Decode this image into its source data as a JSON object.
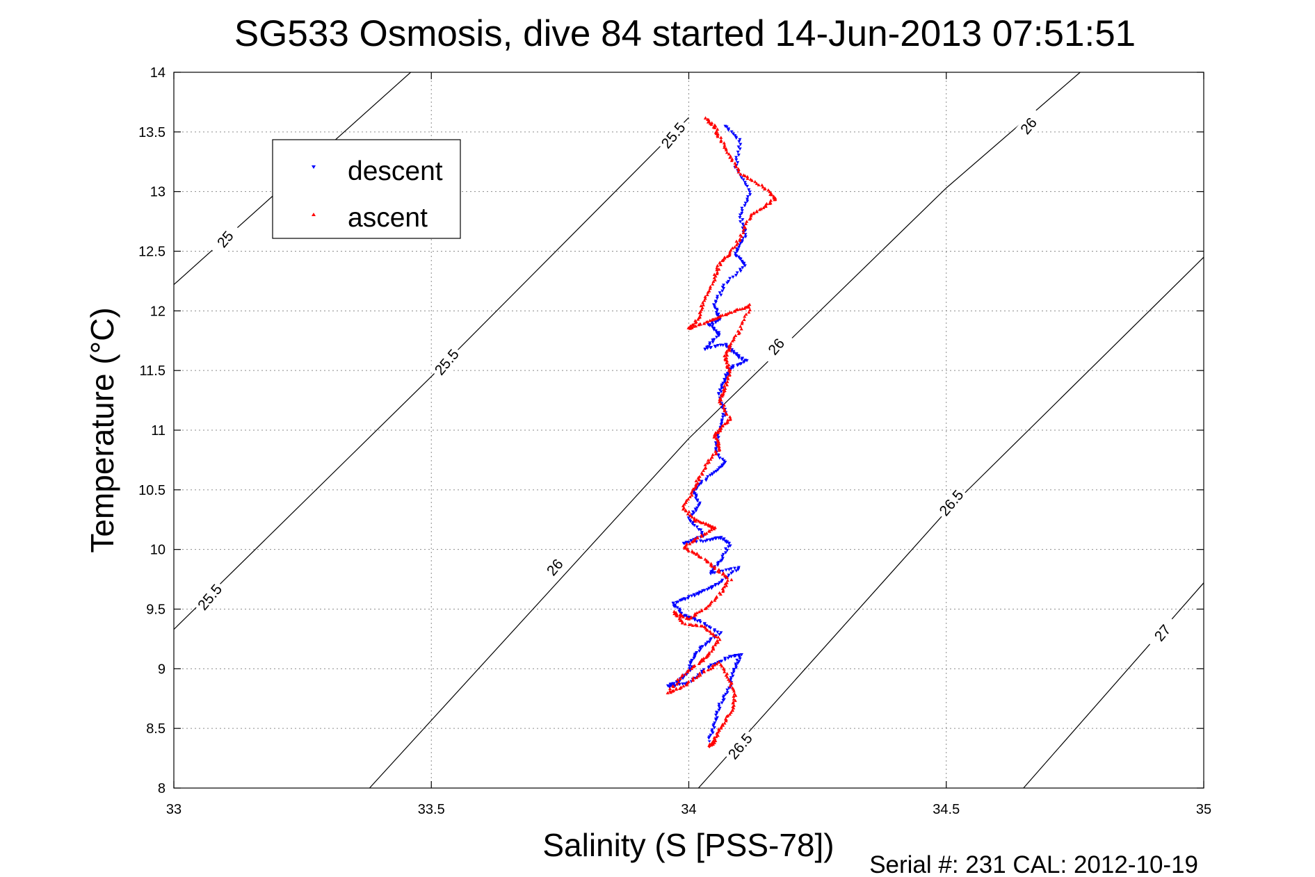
{
  "chart_data": {
    "type": "scatter",
    "title": "SG533 Osmosis, dive 84 started 14-Jun-2013 07:51:51",
    "xlabel": "Salinity (S [PSS-78])",
    "ylabel": "Temperature (°C)",
    "footer": "Serial #: 231  CAL: 2012-10-19",
    "xlim": [
      33,
      35
    ],
    "ylim": [
      8,
      14
    ],
    "xticks": [
      "33",
      "33.5",
      "34",
      "34.5",
      "35"
    ],
    "yticks": [
      "8",
      "8.5",
      "9",
      "9.5",
      "10",
      "10.5",
      "11",
      "11.5",
      "12",
      "12.5",
      "13",
      "13.5",
      "14"
    ],
    "grid": true,
    "legend": {
      "position": "top-left",
      "entries": [
        {
          "label": "descent",
          "color": "#0000ff",
          "marker": "triangle-down"
        },
        {
          "label": "ascent",
          "color": "#ff0000",
          "marker": "triangle-up"
        }
      ]
    },
    "contours": [
      {
        "label": "25",
        "points": [
          [
            33.0,
            12.22
          ],
          [
            33.46,
            14.0
          ]
        ]
      },
      {
        "label": "25.5",
        "points": [
          [
            33.0,
            9.33
          ],
          [
            33.5,
            11.45
          ],
          [
            34.0,
            13.62
          ]
        ]
      },
      {
        "label": "26",
        "points": [
          [
            33.38,
            8.0
          ],
          [
            34.0,
            10.93
          ],
          [
            34.5,
            13.03
          ],
          [
            34.76,
            14.0
          ]
        ]
      },
      {
        "label": "26.5",
        "points": [
          [
            34.0,
            7.91
          ],
          [
            34.5,
            10.32
          ],
          [
            35.0,
            12.45
          ]
        ]
      },
      {
        "label": "27",
        "points": [
          [
            34.65,
            8.0
          ],
          [
            35.0,
            9.72
          ]
        ]
      }
    ],
    "contour_labels": [
      {
        "text": "25",
        "x": 33.1,
        "y": 12.6
      },
      {
        "text": "25.5",
        "x": 33.53,
        "y": 11.57
      },
      {
        "text": "25.5",
        "x": 33.97,
        "y": 13.47
      },
      {
        "text": "25.5",
        "x": 33.07,
        "y": 9.6
      },
      {
        "text": "26",
        "x": 34.17,
        "y": 11.7
      },
      {
        "text": "26",
        "x": 34.66,
        "y": 13.55
      },
      {
        "text": "26",
        "x": 33.74,
        "y": 9.85
      },
      {
        "text": "26.5",
        "x": 34.51,
        "y": 10.39
      },
      {
        "text": "26.5",
        "x": 34.1,
        "y": 8.35
      },
      {
        "text": "27",
        "x": 34.92,
        "y": 9.3
      }
    ],
    "series": [
      {
        "name": "descent",
        "color": "#0000ff",
        "marker": "triangle-down",
        "path": [
          [
            34.07,
            13.55
          ],
          [
            34.1,
            13.42
          ],
          [
            34.09,
            13.2
          ],
          [
            34.12,
            13.0
          ],
          [
            34.1,
            12.8
          ],
          [
            34.11,
            12.62
          ],
          [
            34.09,
            12.48
          ],
          [
            34.11,
            12.38
          ],
          [
            34.07,
            12.22
          ],
          [
            34.05,
            12.05
          ],
          [
            34.06,
            11.93
          ],
          [
            34.04,
            11.88
          ],
          [
            34.06,
            11.8
          ],
          [
            34.03,
            11.68
          ],
          [
            34.07,
            11.72
          ],
          [
            34.09,
            11.64
          ],
          [
            34.11,
            11.58
          ],
          [
            34.08,
            11.52
          ],
          [
            34.07,
            11.42
          ],
          [
            34.06,
            11.3
          ],
          [
            34.07,
            11.15
          ],
          [
            34.06,
            11.0
          ],
          [
            34.05,
            10.85
          ],
          [
            34.07,
            10.72
          ],
          [
            34.04,
            10.62
          ],
          [
            34.01,
            10.5
          ],
          [
            34.02,
            10.38
          ],
          [
            34.0,
            10.25
          ],
          [
            34.03,
            10.12
          ],
          [
            33.99,
            10.05
          ],
          [
            34.04,
            10.08
          ],
          [
            34.06,
            10.1
          ],
          [
            34.08,
            10.05
          ],
          [
            34.06,
            9.9
          ],
          [
            34.04,
            9.8
          ],
          [
            34.1,
            9.85
          ],
          [
            34.06,
            9.72
          ],
          [
            34.03,
            9.65
          ],
          [
            34.0,
            9.6
          ],
          [
            33.97,
            9.55
          ],
          [
            33.99,
            9.45
          ],
          [
            34.02,
            9.4
          ],
          [
            34.06,
            9.3
          ],
          [
            34.03,
            9.2
          ],
          [
            34.01,
            9.1
          ],
          [
            34.0,
            8.98
          ],
          [
            33.98,
            8.9
          ],
          [
            33.96,
            8.85
          ],
          [
            34.0,
            8.88
          ],
          [
            34.04,
            9.02
          ],
          [
            34.08,
            9.1
          ],
          [
            34.1,
            9.12
          ],
          [
            34.09,
            9.0
          ],
          [
            34.08,
            8.85
          ],
          [
            34.06,
            8.7
          ],
          [
            34.05,
            8.55
          ],
          [
            34.04,
            8.4
          ]
        ]
      },
      {
        "name": "ascent",
        "color": "#ff0000",
        "marker": "triangle-up",
        "path": [
          [
            34.03,
            13.62
          ],
          [
            34.05,
            13.55
          ],
          [
            34.06,
            13.45
          ],
          [
            34.08,
            13.3
          ],
          [
            34.1,
            13.15
          ],
          [
            34.14,
            13.05
          ],
          [
            34.17,
            12.95
          ],
          [
            34.15,
            12.88
          ],
          [
            34.12,
            12.8
          ],
          [
            34.1,
            12.62
          ],
          [
            34.08,
            12.48
          ],
          [
            34.06,
            12.4
          ],
          [
            34.05,
            12.28
          ],
          [
            34.03,
            12.1
          ],
          [
            34.02,
            11.95
          ],
          [
            34.0,
            11.85
          ],
          [
            34.03,
            11.9
          ],
          [
            34.06,
            11.95
          ],
          [
            34.09,
            12.0
          ],
          [
            34.12,
            12.05
          ],
          [
            34.1,
            11.85
          ],
          [
            34.08,
            11.7
          ],
          [
            34.07,
            11.6
          ],
          [
            34.08,
            11.5
          ],
          [
            34.07,
            11.35
          ],
          [
            34.06,
            11.25
          ],
          [
            34.08,
            11.1
          ],
          [
            34.06,
            11.0
          ],
          [
            34.05,
            10.95
          ],
          [
            34.06,
            10.85
          ],
          [
            34.04,
            10.75
          ],
          [
            34.02,
            10.6
          ],
          [
            34.01,
            10.5
          ],
          [
            33.99,
            10.35
          ],
          [
            34.01,
            10.25
          ],
          [
            34.04,
            10.2
          ],
          [
            34.05,
            10.18
          ],
          [
            34.02,
            10.1
          ],
          [
            33.99,
            10.02
          ],
          [
            34.02,
            9.95
          ],
          [
            34.05,
            9.85
          ],
          [
            34.08,
            9.75
          ],
          [
            34.06,
            9.62
          ],
          [
            34.03,
            9.5
          ],
          [
            34.0,
            9.42
          ],
          [
            33.97,
            9.48
          ],
          [
            33.99,
            9.38
          ],
          [
            34.03,
            9.35
          ],
          [
            34.06,
            9.25
          ],
          [
            34.04,
            9.12
          ],
          [
            34.02,
            9.05
          ],
          [
            33.99,
            8.95
          ],
          [
            33.96,
            8.8
          ],
          [
            33.99,
            8.85
          ],
          [
            34.02,
            8.95
          ],
          [
            34.06,
            9.05
          ],
          [
            34.08,
            8.9
          ],
          [
            34.09,
            8.75
          ],
          [
            34.08,
            8.62
          ],
          [
            34.06,
            8.5
          ],
          [
            34.05,
            8.4
          ],
          [
            34.04,
            8.35
          ]
        ]
      }
    ]
  }
}
